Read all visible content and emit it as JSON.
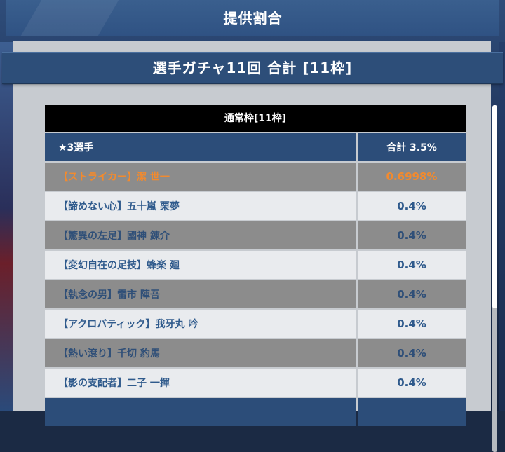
{
  "dialog": {
    "title": "提供割合",
    "banner": "選手ガチャ11回 合計 [11枠]"
  },
  "section": {
    "heading": "通常枠[11枠]"
  },
  "table": {
    "header": {
      "label": "★3選手",
      "value": "合計 3.5%"
    },
    "rows": [
      {
        "label": "【ストライカー】潔 世一",
        "value": "0.6998%",
        "highlight": true
      },
      {
        "label": "【諦めない心】五十嵐 栗夢",
        "value": "0.4%"
      },
      {
        "label": "【驚異の左足】國神 錬介",
        "value": "0.4%"
      },
      {
        "label": "【変幻自在の足技】蜂楽 廻",
        "value": "0.4%"
      },
      {
        "label": "【執念の男】雷市 陣吾",
        "value": "0.4%"
      },
      {
        "label": "【アクロバティック】我牙丸 吟",
        "value": "0.4%"
      },
      {
        "label": "【熱い滾り】千切 豹馬",
        "value": "0.4%"
      },
      {
        "label": "【影の支配者】二子 一揮",
        "value": "0.4%"
      }
    ]
  },
  "colors": {
    "highlight_text": "#f28a2e",
    "header_bg": "#2c4d79",
    "section_bg": "#000000"
  }
}
